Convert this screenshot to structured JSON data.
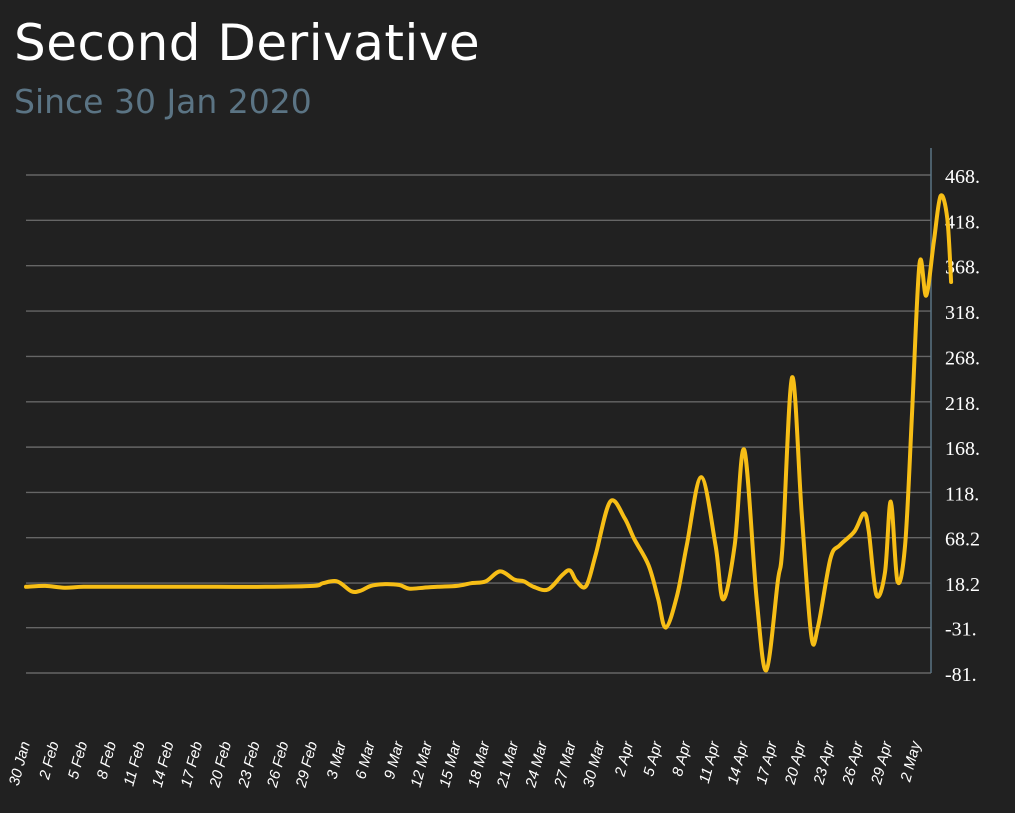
{
  "title": "Second Derivative",
  "subtitle": "Since 30 Jan 2020",
  "colors": {
    "background": "#212121",
    "line": "#f7be16",
    "grid": "#666666",
    "title": "#ffffff",
    "subtitle": "#5b7484",
    "axis": "#5b7484"
  },
  "chart_data": {
    "type": "line",
    "title": "Second Derivative",
    "subtitle": "Since 30 Jan 2020",
    "xlabel": "",
    "ylabel": "",
    "grid": true,
    "y_axis_side": "right",
    "ylim": [
      -81,
      468
    ],
    "y_tick_values": [
      468,
      418,
      368,
      318,
      268,
      218,
      168,
      118,
      68.2,
      18.2,
      -31,
      -81
    ],
    "y_tick_labels": [
      "468.",
      "418.",
      "368.",
      "318.",
      "268.",
      "218.",
      "168.",
      "118.",
      "68.2",
      "18.2",
      "-31.",
      "-81."
    ],
    "x_tick_labels": [
      "30 Jan",
      "2 Feb",
      "5 Feb",
      "8 Feb",
      "11 Feb",
      "14 Feb",
      "17 Feb",
      "20 Feb",
      "23 Feb",
      "26 Feb",
      "29 Feb",
      "3 Mar",
      "6 Mar",
      "9 Mar",
      "12 Mar",
      "15 Mar",
      "18 Mar",
      "21 Mar",
      "24 Mar",
      "27 Mar",
      "30 Mar",
      "2 Apr",
      "5 Apr",
      "8 Apr",
      "11 Apr",
      "14 Apr",
      "17 Apr",
      "20 Apr",
      "23 Apr",
      "26 Apr",
      "29 Apr",
      "2 May"
    ],
    "x_tick_days": [
      0,
      3,
      6,
      9,
      12,
      15,
      18,
      21,
      24,
      27,
      30,
      33,
      36,
      39,
      42,
      45,
      48,
      51,
      54,
      57,
      60,
      63,
      66,
      69,
      72,
      75,
      78,
      81,
      84,
      87,
      90,
      93
    ],
    "x_range_days": [
      0,
      94.5
    ],
    "series": [
      {
        "values": [
          [
            0,
            14
          ],
          [
            2,
            15
          ],
          [
            4,
            13
          ],
          [
            6,
            14
          ],
          [
            10,
            14
          ],
          [
            15,
            14
          ],
          [
            20,
            14
          ],
          [
            25,
            14
          ],
          [
            30,
            15
          ],
          [
            31,
            18
          ],
          [
            32.5,
            20
          ],
          [
            34,
            9
          ],
          [
            35,
            10
          ],
          [
            36,
            15
          ],
          [
            37.5,
            17
          ],
          [
            39,
            16
          ],
          [
            40,
            12
          ],
          [
            41.5,
            13
          ],
          [
            43,
            14
          ],
          [
            45,
            15
          ],
          [
            46.5,
            18
          ],
          [
            48,
            20
          ],
          [
            49.5,
            31
          ],
          [
            51,
            22
          ],
          [
            52,
            20
          ],
          [
            53,
            14
          ],
          [
            54.5,
            11
          ],
          [
            56,
            27
          ],
          [
            56.8,
            32
          ],
          [
            57.5,
            20
          ],
          [
            58.5,
            15
          ],
          [
            59.5,
            50
          ],
          [
            61,
            108
          ],
          [
            62.5,
            90
          ],
          [
            63.5,
            67
          ],
          [
            65,
            38
          ],
          [
            66,
            1
          ],
          [
            66.8,
            -31
          ],
          [
            68,
            5
          ],
          [
            69,
            60
          ],
          [
            70.5,
            135
          ],
          [
            72,
            60
          ],
          [
            72.8,
            0
          ],
          [
            74,
            60
          ],
          [
            75,
            165
          ],
          [
            76.3,
            0
          ],
          [
            77.3,
            -78
          ],
          [
            78.5,
            20
          ],
          [
            79,
            60
          ],
          [
            80,
            245
          ],
          [
            81,
            95
          ],
          [
            82,
            -40
          ],
          [
            82.7,
            -30
          ],
          [
            84,
            45
          ],
          [
            85,
            60
          ],
          [
            86.5,
            75
          ],
          [
            87.5,
            95
          ],
          [
            88,
            75
          ],
          [
            88.8,
            5
          ],
          [
            89.7,
            30
          ],
          [
            90.3,
            108
          ],
          [
            91,
            20
          ],
          [
            91.8,
            60
          ],
          [
            92.5,
            200
          ],
          [
            93.3,
            370
          ],
          [
            94,
            335
          ],
          [
            94.8,
            395
          ],
          [
            95.5,
            445
          ],
          [
            96.2,
            420
          ],
          [
            96.6,
            350
          ]
        ]
      }
    ]
  }
}
